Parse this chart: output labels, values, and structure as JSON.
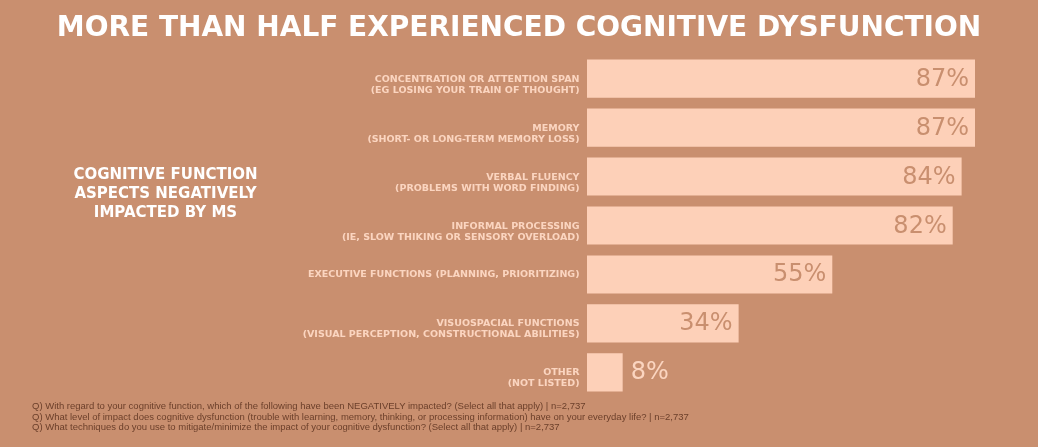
{
  "chart_data": {
    "type": "bar",
    "orientation": "horizontal",
    "title": "MORE THAN HALF EXPERIENCED COGNITIVE DYSFUNCTION",
    "ylabel": "COGNITIVE FUNCTION ASPECTS NEGATIVELY IMPACTED BY MS",
    "categories": [
      "CONCENTRATION OR ATTENTION SPAN\n(EG LOSING YOUR TRAIN OF THOUGHT)",
      "MEMORY\n(SHORT- OR LONG-TERM MEMORY LOSS)",
      "VERBAL FLUENCY\n(PROBLEMS WITH WORD FINDING)",
      "INFORMAL PROCESSING\n(IE, SLOW THIKING OR SENSORY OVERLOAD)",
      "EXECUTIVE FUNCTIONS (PLANNING, PRIORITIZING)",
      "VISUOSPACIAL FUNCTIONS\n(VISUAL PERCEPTION, CONSTRUCTIONAL ABILITIES)",
      "OTHER\n(NOT LISTED)"
    ],
    "values": [
      87,
      87,
      84,
      82,
      55,
      34,
      8
    ],
    "value_labels": [
      "87%",
      "87%",
      "84%",
      "82%",
      "55%",
      "34%",
      "8%"
    ],
    "color": "#fdd0b8",
    "tick_labels": "y",
    "annotations": [
      "Q) With regard to your cognitive function, which of the following have been NEGATIVELY impacted? (Select all that apply) | n=2,737",
      "Q) What level of impact does cognitive dysfunction (trouble with learning, memory, thinking, or processing information) have on your everyday life? | n=2,737",
      "Q) What techniques do you use to mitigate/minimize the impact of your cognitive dysfunction? (Select all that apply) | n=2,737"
    ]
  }
}
